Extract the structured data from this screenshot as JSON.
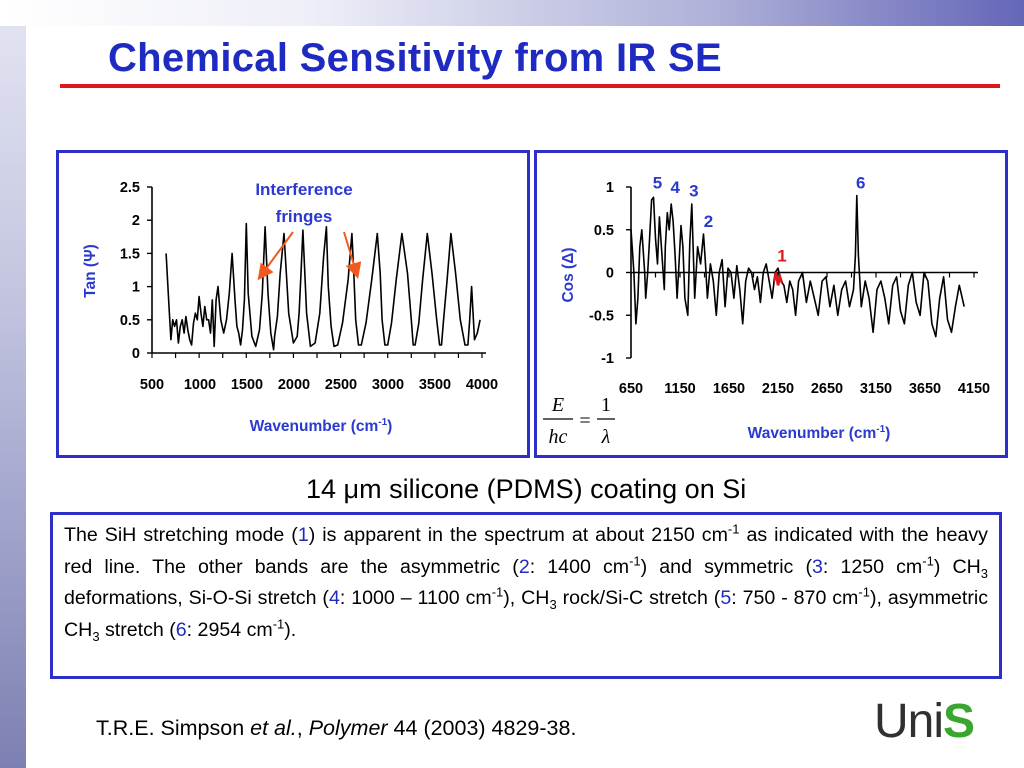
{
  "title": "Chemical Sensitivity from IR SE",
  "subtitle": "14 μm silicone (PDMS) coating on Si",
  "description": [
    {
      "t": "The SiH stretching mode ("
    },
    {
      "t": "1",
      "c": "num"
    },
    {
      "t": ") is apparent in the spectrum at about 2150 cm"
    },
    {
      "t": "-1",
      "c": "sup"
    },
    {
      "t": " as indicated with the heavy red line. The other bands are the asymmetric ("
    },
    {
      "t": "2",
      "c": "num"
    },
    {
      "t": ": 1400 cm"
    },
    {
      "t": "-1",
      "c": "sup"
    },
    {
      "t": ") and symmetric ("
    },
    {
      "t": "3",
      "c": "num"
    },
    {
      "t": ": 1250 cm"
    },
    {
      "t": "-1",
      "c": "sup"
    },
    {
      "t": ") CH"
    },
    {
      "t": "3",
      "c": "sub"
    },
    {
      "t": " deformations, Si-O-Si stretch ("
    },
    {
      "t": "4",
      "c": "num"
    },
    {
      "t": ": 1000 – 1100 cm"
    },
    {
      "t": "-1",
      "c": "sup"
    },
    {
      "t": "), CH"
    },
    {
      "t": "3",
      "c": "sub"
    },
    {
      "t": " rock/Si-C stretch ("
    },
    {
      "t": "5",
      "c": "num"
    },
    {
      "t": ": 750 - 870 cm"
    },
    {
      "t": "-1",
      "c": "sup"
    },
    {
      "t": "), asymmetric CH"
    },
    {
      "t": "3",
      "c": "sub"
    },
    {
      "t": " stretch ("
    },
    {
      "t": "6",
      "c": "num"
    },
    {
      "t": ": 2954 cm"
    },
    {
      "t": "-1",
      "c": "sup"
    },
    {
      "t": ")."
    }
  ],
  "citation": {
    "authors": "T.R.E. Simpson ",
    "etal": "et al.",
    "sep": ", ",
    "journal": "Polymer",
    "ref": " 44 (2003) 4829-38."
  },
  "logo": {
    "uni": "Uni",
    "s": "S"
  },
  "colors": {
    "title": "#1f2bc0",
    "rule": "#e0181b",
    "frame": "#2e2ec8",
    "label": "#2a3ad0",
    "arrow": "#f05a1e",
    "sih": "#e0181b",
    "logo_green": "#3aa630"
  },
  "chart_data": [
    {
      "type": "line",
      "xlabel": "Wavenumber (cm-1)",
      "ylabel": "Tan (Ψ)",
      "xlim": [
        500,
        4000
      ],
      "ylim": [
        0,
        2.5
      ],
      "x_ticks": [
        "500",
        "1000",
        "1500",
        "2000",
        "2500",
        "3000",
        "3500",
        "4000"
      ],
      "y_ticks": [
        "0",
        "0.5",
        "1",
        "1.5",
        "2",
        "2.5"
      ],
      "annotation": "Interference fringes",
      "series": [
        {
          "x": [
            650,
            680,
            700,
            720,
            740,
            760,
            780,
            800,
            820,
            840,
            860,
            880,
            900,
            920,
            940,
            960,
            980,
            1000,
            1020,
            1040,
            1060,
            1080,
            1100,
            1120,
            1140,
            1160,
            1180,
            1200,
            1230,
            1260,
            1290,
            1320,
            1350,
            1380,
            1400,
            1420,
            1440,
            1460,
            1480,
            1500,
            1520,
            1560,
            1600,
            1640,
            1670,
            1700,
            1730,
            1760,
            1790,
            1800,
            1830,
            1860,
            1900,
            1950,
            2000,
            2040,
            2060,
            2080,
            2100,
            2140,
            2180,
            2230,
            2280,
            2320,
            2350,
            2370,
            2400,
            2430,
            2470,
            2520,
            2580,
            2620,
            2640,
            2660,
            2690,
            2720,
            2770,
            2830,
            2890,
            2920,
            2940,
            2970,
            3000,
            3040,
            3090,
            3150,
            3210,
            3250,
            3270,
            3290,
            3330,
            3370,
            3420,
            3470,
            3520,
            3550,
            3570,
            3590,
            3630,
            3670,
            3720,
            3770,
            3820,
            3850,
            3870,
            3890,
            3920,
            3950,
            3980
          ],
          "y": [
            1.5,
            0.7,
            0.2,
            0.5,
            0.4,
            0.5,
            0.15,
            0.4,
            0.5,
            0.3,
            0.55,
            0.35,
            0.2,
            0.12,
            0.45,
            0.6,
            0.5,
            0.85,
            0.6,
            0.4,
            0.7,
            0.5,
            0.5,
            0.3,
            0.8,
            0.1,
            0.8,
            1.0,
            0.5,
            0.3,
            0.5,
            0.9,
            1.5,
            0.8,
            0.4,
            0.3,
            0.12,
            0.35,
            0.8,
            1.95,
            0.9,
            0.25,
            0.1,
            0.35,
            0.9,
            1.9,
            0.9,
            0.3,
            0.05,
            0.25,
            0.55,
            1.2,
            1.8,
            0.6,
            0.15,
            0.25,
            0.6,
            1.2,
            1.85,
            0.6,
            0.1,
            0.15,
            0.6,
            1.45,
            1.9,
            1.0,
            0.4,
            0.1,
            0.12,
            0.45,
            1.1,
            1.8,
            1.2,
            0.5,
            0.12,
            0.12,
            0.45,
            1.1,
            1.8,
            1.2,
            0.5,
            0.12,
            0.12,
            0.45,
            1.1,
            1.8,
            1.2,
            0.5,
            0.12,
            0.12,
            0.45,
            1.1,
            1.8,
            1.2,
            0.5,
            0.12,
            0.12,
            0.45,
            1.1,
            1.8,
            1.2,
            0.5,
            0.12,
            0.12,
            0.5,
            1.0,
            0.2,
            0.3,
            0.5
          ]
        }
      ]
    },
    {
      "type": "line",
      "xlabel": "Wavenumber (cm-1)",
      "ylabel": "Cos (Δ)",
      "xlim": [
        650,
        4150
      ],
      "ylim": [
        -1,
        1
      ],
      "x_ticks": [
        "650",
        "1150",
        "1650",
        "2150",
        "2650",
        "3150",
        "3650",
        "4150"
      ],
      "y_ticks": [
        "1",
        "0.5",
        "0",
        "-0.5",
        "-1"
      ],
      "equation": {
        "lhs_num": "E",
        "lhs_den": "hc",
        "eq": "=",
        "rhs_num": "1",
        "rhs_den": "λ"
      },
      "peak_labels": [
        {
          "label": "5",
          "x": 880,
          "y": 0.91
        },
        {
          "label": "4",
          "x": 1060,
          "y": 0.86
        },
        {
          "label": "3",
          "x": 1250,
          "y": 0.82
        },
        {
          "label": "2",
          "x": 1400,
          "y": 0.46
        },
        {
          "label": "1",
          "x": 2150,
          "y": 0.06
        },
        {
          "label": "6",
          "x": 2954,
          "y": 0.91
        }
      ],
      "series": [
        {
          "x": [
            650,
            680,
            700,
            720,
            740,
            760,
            790,
            800,
            820,
            840,
            860,
            880,
            900,
            920,
            940,
            960,
            990,
            1000,
            1020,
            1040,
            1060,
            1080,
            1100,
            1120,
            1140,
            1160,
            1180,
            1200,
            1230,
            1250,
            1270,
            1300,
            1330,
            1360,
            1390,
            1410,
            1430,
            1460,
            1490,
            1520,
            1550,
            1580,
            1610,
            1640,
            1670,
            1700,
            1730,
            1760,
            1790,
            1820,
            1850,
            1880,
            1910,
            1940,
            1970,
            2000,
            2030,
            2060,
            2090,
            2120,
            2150,
            2180,
            2210,
            2240,
            2270,
            2300,
            2330,
            2360,
            2400,
            2440,
            2480,
            2520,
            2560,
            2600,
            2640,
            2680,
            2720,
            2760,
            2800,
            2840,
            2880,
            2920,
            2940,
            2954,
            2970,
            3000,
            3040,
            3080,
            3120,
            3160,
            3200,
            3240,
            3280,
            3320,
            3360,
            3400,
            3440,
            3480,
            3520,
            3560,
            3600,
            3640,
            3680,
            3720,
            3760,
            3800,
            3840,
            3880,
            3920,
            3960,
            4000,
            4050
          ],
          "y": [
            0.5,
            0.0,
            -0.6,
            -0.3,
            0.3,
            0.5,
            0.0,
            -0.3,
            0.0,
            0.4,
            0.85,
            0.88,
            0.4,
            0.1,
            0.65,
            0.3,
            -0.2,
            0.3,
            0.7,
            0.5,
            0.8,
            0.6,
            0.2,
            -0.3,
            0.1,
            0.55,
            0.3,
            -0.3,
            -0.5,
            0.35,
            0.8,
            -0.3,
            0.3,
            0.1,
            0.45,
            0.1,
            -0.3,
            0.1,
            -0.1,
            -0.5,
            0.0,
            0.15,
            -0.4,
            0.05,
            0.0,
            -0.3,
            0.08,
            -0.2,
            -0.6,
            -0.1,
            0.05,
            0.0,
            -0.2,
            -0.05,
            -0.35,
            0.0,
            0.1,
            -0.1,
            -0.3,
            0.0,
            0.05,
            -0.1,
            -0.15,
            -0.35,
            -0.1,
            -0.2,
            -0.5,
            -0.1,
            0.0,
            -0.35,
            -0.1,
            -0.3,
            -0.5,
            -0.1,
            -0.05,
            -0.4,
            -0.15,
            -0.5,
            -0.2,
            -0.1,
            -0.4,
            -0.2,
            0.2,
            0.9,
            0.2,
            -0.4,
            -0.1,
            -0.3,
            -0.7,
            -0.2,
            -0.1,
            -0.3,
            -0.6,
            -0.15,
            -0.05,
            -0.45,
            -0.6,
            -0.15,
            0.0,
            -0.35,
            -0.5,
            0.0,
            -0.1,
            -0.6,
            -0.75,
            -0.3,
            -0.05,
            -0.55,
            -0.7,
            -0.4,
            -0.15,
            -0.4
          ]
        }
      ],
      "highlight": {
        "x": [
          2110,
          2130,
          2150,
          2170,
          2190
        ],
        "y": [
          -0.1,
          0.0,
          -0.15,
          -0.05,
          -0.12
        ]
      }
    }
  ]
}
